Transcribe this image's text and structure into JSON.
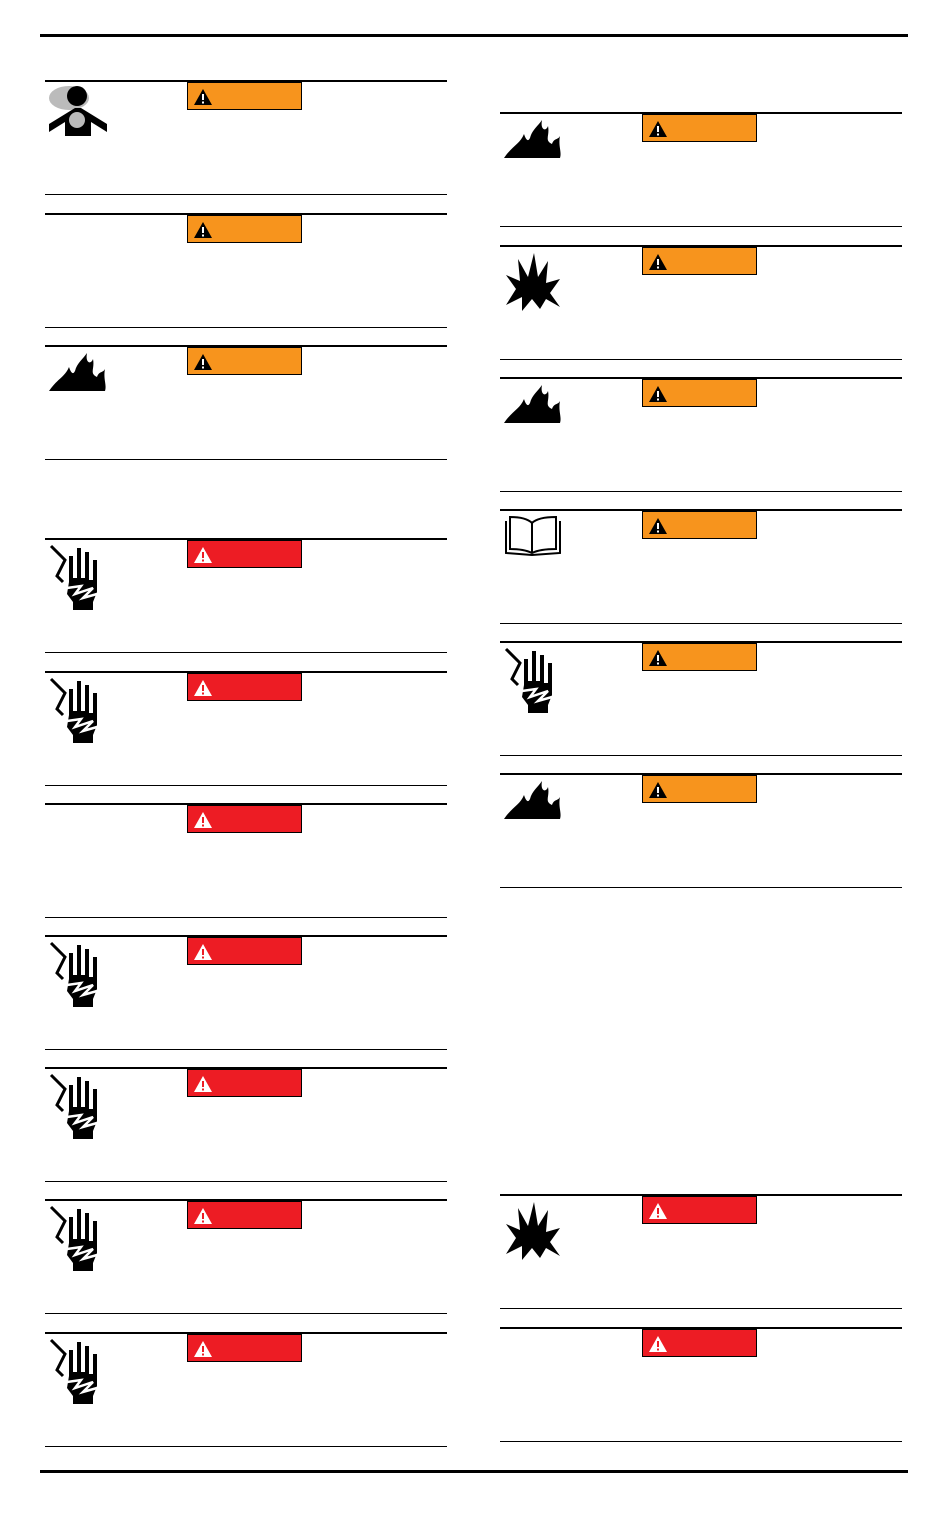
{
  "colors": {
    "warning": "#f7941d",
    "danger": "#ed1c24",
    "rule": "#000000"
  },
  "left_column": [
    {
      "severity": "warning",
      "icon": "inhalation-hazard-icon",
      "top": 0
    },
    {
      "severity": "warning",
      "icon": null
    },
    {
      "severity": "warning",
      "icon": "fire-icon"
    },
    {
      "severity": "danger",
      "icon": "electric-shock-icon"
    },
    {
      "severity": "danger",
      "icon": "electric-shock-icon"
    },
    {
      "severity": "danger",
      "icon": null
    },
    {
      "severity": "danger",
      "icon": "electric-shock-icon"
    },
    {
      "severity": "danger",
      "icon": "electric-shock-icon"
    },
    {
      "severity": "danger",
      "icon": "electric-shock-icon"
    },
    {
      "severity": "danger",
      "icon": "electric-shock-icon"
    }
  ],
  "right_column": [
    {
      "severity": "warning",
      "icon": "fire-icon"
    },
    {
      "severity": "warning",
      "icon": "explosion-icon"
    },
    {
      "severity": "warning",
      "icon": "fire-icon"
    },
    {
      "severity": "warning",
      "icon": "read-manual-icon"
    },
    {
      "severity": "warning",
      "icon": "electric-shock-icon"
    },
    {
      "severity": "warning",
      "icon": "fire-icon"
    },
    {
      "severity": "danger",
      "icon": "explosion-icon"
    },
    {
      "severity": "danger",
      "icon": null
    }
  ]
}
